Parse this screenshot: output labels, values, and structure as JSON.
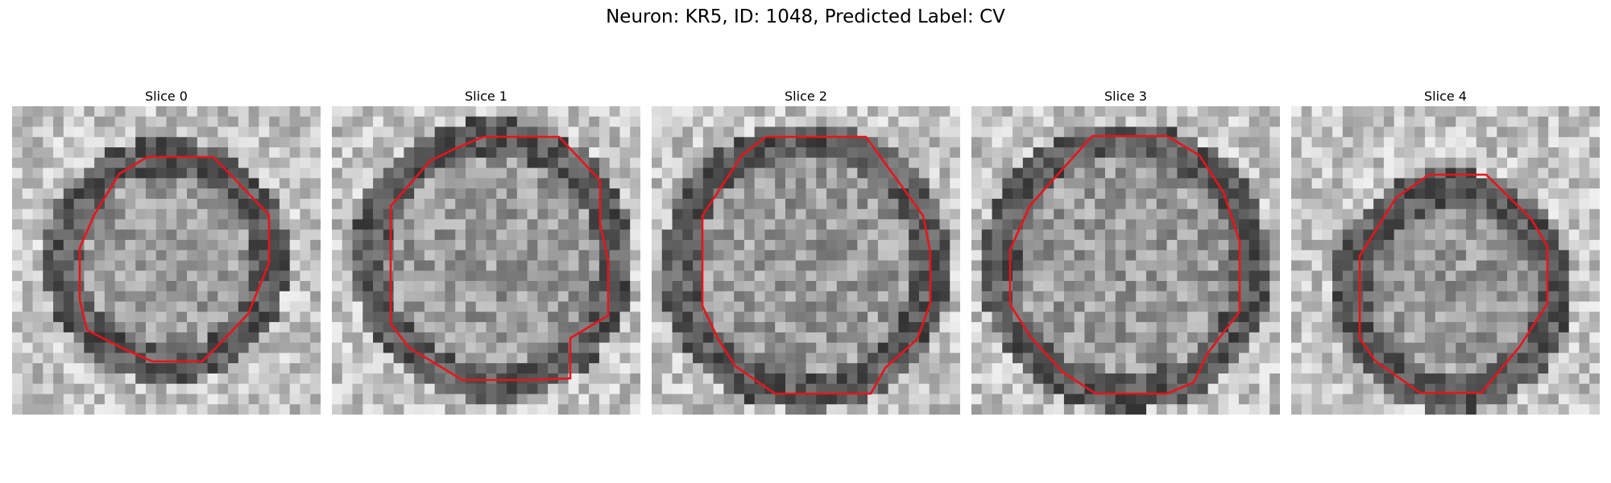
{
  "title": "Neuron: KR5, ID: 1048, Predicted Label: CV",
  "contour_color": "#e8141a",
  "colormap": "grayscale",
  "panels": [
    {
      "title": "Slice 0",
      "contour_shape": "small octagon, center-left"
    },
    {
      "title": "Slice 1",
      "contour_shape": "large octagon, upper-center"
    },
    {
      "title": "Slice 2",
      "contour_shape": "large octagon, center"
    },
    {
      "title": "Slice 3",
      "contour_shape": "large octagon, center"
    },
    {
      "title": "Slice 4",
      "contour_shape": "medium octagon, lower-center"
    }
  ]
}
